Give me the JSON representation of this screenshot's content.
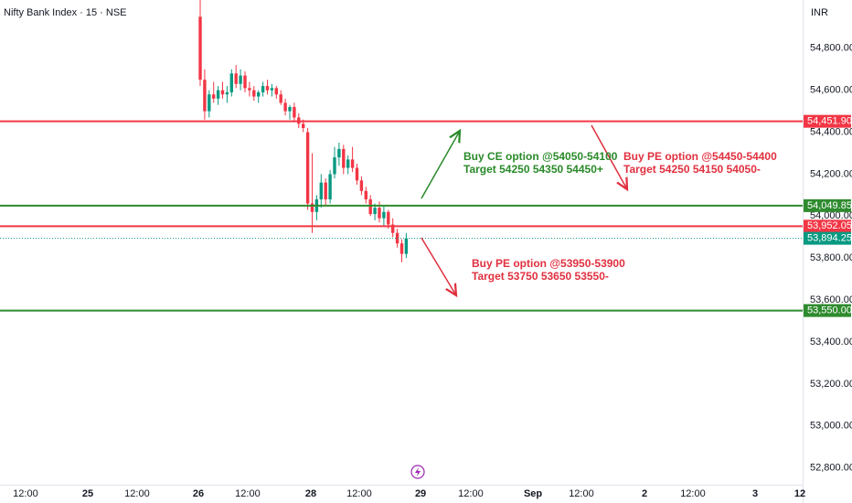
{
  "chart_data": {
    "type": "candlestick",
    "title": "Nifty Bank Index · 15 · NSE",
    "currency": "INR",
    "xlim": [
      -44.7,
      134.5
    ],
    "xticks": [
      {
        "value": -39,
        "label": "12:00"
      },
      {
        "value": -25.1,
        "label": "25"
      },
      {
        "value": -14.1,
        "label": "12:00"
      },
      {
        "value": -0.4,
        "label": "26"
      },
      {
        "value": 10.6,
        "label": "12:00"
      },
      {
        "value": 24.7,
        "label": "28"
      },
      {
        "value": 35.5,
        "label": "12:00"
      },
      {
        "value": 49.2,
        "label": "29"
      },
      {
        "value": 60.4,
        "label": "12:00"
      },
      {
        "value": 74.3,
        "label": "Sep"
      },
      {
        "value": 85.1,
        "label": "12:00"
      },
      {
        "value": 99.2,
        "label": "2"
      },
      {
        "value": 110,
        "label": "12:00"
      },
      {
        "value": 123.9,
        "label": "3"
      },
      {
        "value": 133.9,
        "label": "12"
      }
    ],
    "ylim": [
      52720,
      55030
    ],
    "yticks": [
      {
        "value": 52800,
        "label": "52,800.00"
      },
      {
        "value": 53000,
        "label": "53,000.00"
      },
      {
        "value": 53200,
        "label": "53,200.00"
      },
      {
        "value": 53400,
        "label": "53,400.00"
      },
      {
        "value": 53600,
        "label": "53,600.00"
      },
      {
        "value": 53800,
        "label": "53,800.00"
      },
      {
        "value": 54000,
        "label": "54,000.00"
      },
      {
        "value": 54200,
        "label": "54,200.00"
      },
      {
        "value": 54400,
        "label": "54,400.00"
      },
      {
        "value": 54600,
        "label": "54,600.00"
      },
      {
        "value": 54800,
        "label": "54,800.00"
      }
    ],
    "x": [
      0,
      1,
      2,
      3,
      4,
      5,
      6,
      7,
      8,
      9,
      10,
      11,
      12,
      13,
      14,
      15,
      16,
      17,
      18,
      19,
      20,
      21,
      22,
      23,
      24,
      25,
      26,
      27,
      28,
      29,
      30,
      31,
      32,
      33,
      34,
      35,
      36,
      37,
      38,
      39,
      40,
      41,
      42,
      43,
      44,
      45,
      46
    ],
    "series": [
      {
        "up_color": "#089981",
        "down_color": "#f23645",
        "open": [
          54950,
          54650,
          54500,
          54580,
          54560,
          54600,
          54580,
          54590,
          54680,
          54630,
          54670,
          54610,
          54600,
          54570,
          54590,
          54620,
          54600,
          54610,
          54580,
          54540,
          54500,
          54520,
          54470,
          54440,
          54400,
          54060,
          54020,
          54080,
          54160,
          54080,
          54200,
          54280,
          54320,
          54230,
          54270,
          54230,
          54170,
          54120,
          54080,
          54010,
          54040,
          53990,
          54020,
          53960,
          53920,
          53870,
          53820
        ],
        "high": [
          55030,
          54700,
          54600,
          54640,
          54620,
          54640,
          54620,
          54700,
          54720,
          54700,
          54690,
          54640,
          54620,
          54600,
          54640,
          54650,
          54630,
          54620,
          54600,
          54560,
          54530,
          54540,
          54490,
          54460,
          54420,
          54300,
          54100,
          54200,
          54180,
          54220,
          54330,
          54350,
          54340,
          54290,
          54330,
          54250,
          54190,
          54140,
          54100,
          54060,
          54070,
          54050,
          54030,
          53990,
          53940,
          53890,
          53920
        ],
        "low": [
          54620,
          54460,
          54470,
          54540,
          54530,
          54560,
          54540,
          54570,
          54610,
          54600,
          54590,
          54570,
          54550,
          54540,
          54570,
          54580,
          54570,
          54560,
          54530,
          54480,
          54460,
          54450,
          54420,
          54400,
          54030,
          53920,
          53980,
          54040,
          54050,
          54060,
          54180,
          54240,
          54200,
          54200,
          54210,
          54150,
          54100,
          54060,
          54000,
          53980,
          53970,
          53950,
          53940,
          53900,
          53850,
          53780,
          53800
        ],
        "close": [
          54650,
          54500,
          54580,
          54560,
          54600,
          54580,
          54590,
          54680,
          54630,
          54670,
          54610,
          54600,
          54570,
          54590,
          54620,
          54600,
          54610,
          54580,
          54540,
          54500,
          54520,
          54470,
          54440,
          54420,
          54060,
          54020,
          54080,
          54160,
          54080,
          54200,
          54280,
          54320,
          54230,
          54270,
          54230,
          54170,
          54120,
          54080,
          54010,
          54040,
          53990,
          54020,
          53960,
          53920,
          53870,
          53820,
          53894.25
        ]
      }
    ],
    "levels": [
      {
        "value": 54451.9,
        "label": "54,451.90",
        "color": "#f23645"
      },
      {
        "value": 54049.85,
        "label": "54,049.85",
        "color": "#2e8b2e"
      },
      {
        "value": 53952.05,
        "label": "53,952.05",
        "color": "#f23645"
      },
      {
        "value": 53550,
        "label": "53,550.00",
        "color": "#2e8b2e"
      }
    ],
    "last_price": {
      "value": 53894.25,
      "label": "53,894.25",
      "color": "#089981"
    },
    "annotations": [
      {
        "lines": [
          "Buy CE option @54050-54100",
          "Target 54250 54350 54450+"
        ],
        "color": "#2a8a2a"
      },
      {
        "lines": [
          "Buy PE option @54450-54400",
          "Target 54250 54150 54050-"
        ],
        "color": "#e0303f"
      },
      {
        "lines": [
          "Buy PE option @53950-53900",
          "Target 53750 53650 53550-"
        ],
        "color": "#e0303f"
      }
    ]
  }
}
